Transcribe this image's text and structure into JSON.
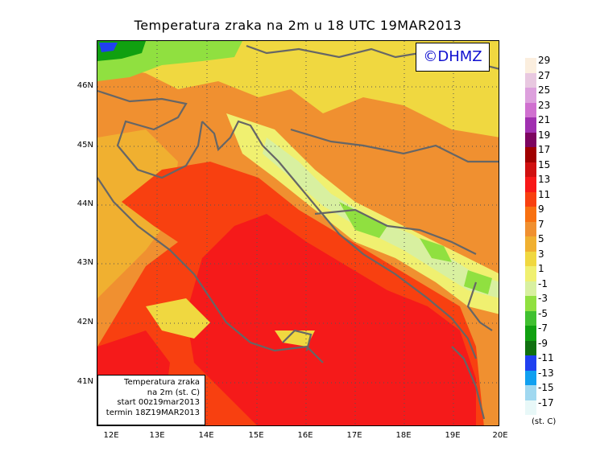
{
  "title": "Temperatura zraka na 2m u 18 UTC 19MAR2013",
  "copyright": "©DHMZ",
  "info_box": {
    "line1": "Temperatura zraka",
    "line2": "na 2m (st. C)",
    "line3": "start 00z19mar2013",
    "line4": "termin 18Z19MAR2013"
  },
  "lat_labels": [
    "46N",
    "45N",
    "44N",
    "43N",
    "42N",
    "41N"
  ],
  "lon_labels": [
    "12E",
    "13E",
    "14E",
    "15E",
    "16E",
    "17E",
    "18E",
    "19E",
    "20E"
  ],
  "colorbar": {
    "unit": "(st. C)",
    "labels": [
      "29",
      "27",
      "25",
      "23",
      "21",
      "19",
      "17",
      "15",
      "13",
      "11",
      "9",
      "7",
      "5",
      "3",
      "1",
      "-1",
      "-3",
      "-5",
      "-7",
      "-9",
      "-11",
      "-13",
      "-15",
      "-17"
    ],
    "colors": [
      "#fbeede",
      "#e8c8e0",
      "#dda0dd",
      "#d070d0",
      "#a030b0",
      "#7d0560",
      "#a00000",
      "#d01010",
      "#f81818",
      "#f84010",
      "#f87010",
      "#f09030",
      "#f0b030",
      "#f0d840",
      "#f0f070",
      "#d8f0a0",
      "#90e040",
      "#40c030",
      "#10a010",
      "#107010",
      "#2040f0",
      "#10a0f0",
      "#a0d8f0",
      "#e8f8f8"
    ]
  },
  "map": {
    "sea_color": "#f51a1a",
    "coast_color": "#666666",
    "bg_color": "#f0a030"
  }
}
